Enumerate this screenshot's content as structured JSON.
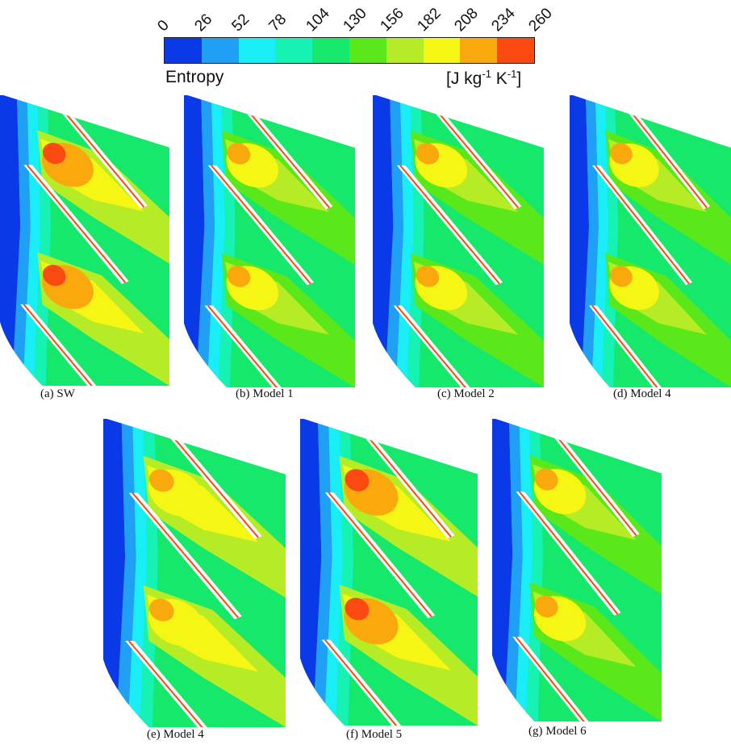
{
  "legend": {
    "title": "Entropy",
    "units_base": "[J kg",
    "units_exp1": "-1",
    "units_mid": " K",
    "units_exp2": "-1",
    "units_end": "]",
    "ticks": [
      "0",
      "26",
      "52",
      "78",
      "104",
      "130",
      "156",
      "182",
      "208",
      "234",
      "260"
    ],
    "colors": [
      "#0a3ae8",
      "#1fa0f5",
      "#19eef7",
      "#15f2b2",
      "#15e86a",
      "#5ae81a",
      "#b6ec26",
      "#f6f614",
      "#f9a90c",
      "#fa4a12"
    ]
  },
  "panels": [
    {
      "caption": "(a) SW",
      "style": "sw"
    },
    {
      "caption": "(b) Model 1",
      "style": "m1"
    },
    {
      "caption": "(c) Model 2",
      "style": "m2"
    },
    {
      "caption": "(d) Model 4",
      "style": "m1"
    },
    {
      "caption": "(e) Model 4",
      "style": "m4"
    },
    {
      "caption": "(f) Model 5",
      "style": "m5"
    },
    {
      "caption": "(g) Model 6",
      "style": "m6"
    }
  ]
}
